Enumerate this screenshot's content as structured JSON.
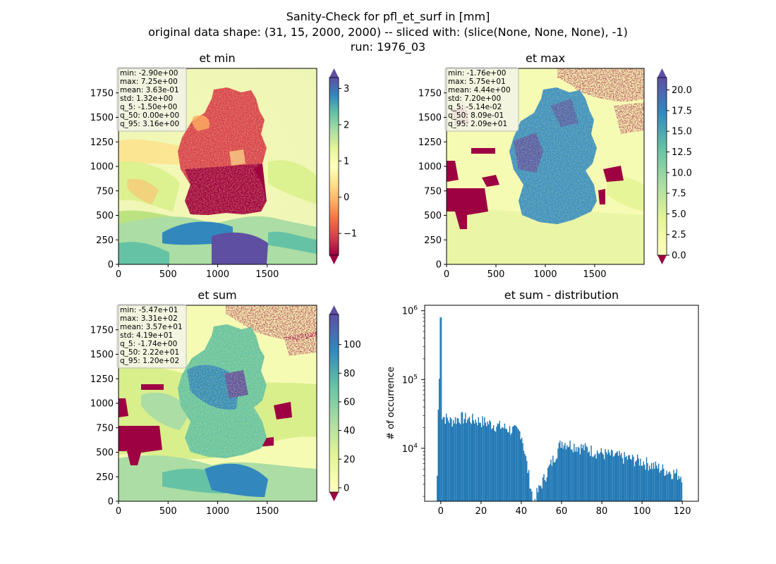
{
  "figure": {
    "title_lines": [
      "Sanity-Check for pfl_et_surf in [mm]",
      "original data shape: (31, 15, 2000, 2000) -- sliced with: (slice(None, None, None), -1)",
      "run: 1976_03"
    ]
  },
  "colors": {
    "hist_bar": "#1f77b4",
    "colormap": "Spectral",
    "under_color": "#9e0142",
    "background_yellow": "#f7fbb0"
  },
  "chart_data": [
    {
      "type": "heatmap",
      "title": "et min",
      "xlim": [
        0,
        2000
      ],
      "ylim": [
        0,
        2000
      ],
      "xticks": [
        "0",
        "500",
        "1000",
        "1500"
      ],
      "yticks": [
        "0",
        "250",
        "500",
        "750",
        "1000",
        "1250",
        "1500",
        "1750"
      ],
      "colorbar": {
        "vmin": -1.6,
        "vmax": 3.3,
        "ticks": [
          "−1",
          "0",
          "1",
          "2",
          "3"
        ],
        "tick_values": [
          -1,
          0,
          1,
          2,
          3
        ],
        "extend": "both"
      },
      "stats": [
        "min: -2.90e+00",
        "max: 7.25e+00",
        "mean: 3.63e-01",
        "std: 1.32e+00",
        "q_5: -1.50e+00",
        "q_50: 0.00e+00",
        "q_95: 3.16e+00"
      ]
    },
    {
      "type": "heatmap",
      "title": "et max",
      "xlim": [
        0,
        2000
      ],
      "ylim": [
        0,
        2000
      ],
      "xticks": [
        "0",
        "500",
        "1000",
        "1500"
      ],
      "yticks": [
        "0",
        "250",
        "500",
        "750",
        "1000",
        "1250",
        "1500",
        "1750"
      ],
      "colorbar": {
        "vmin": 0,
        "vmax": 21.5,
        "ticks": [
          "0.0",
          "2.5",
          "5.0",
          "7.5",
          "10.0",
          "12.5",
          "15.0",
          "17.5",
          "20.0"
        ],
        "tick_values": [
          0,
          2.5,
          5,
          7.5,
          10,
          12.5,
          15,
          17.5,
          20
        ],
        "extend": "both"
      },
      "stats": [
        "min: -1.76e+00",
        "max: 5.75e+01",
        "mean: 4.44e+00",
        "std: 7.20e+00",
        "q_5: -5.14e-02",
        "q_50: 8.09e-01",
        "q_95: 2.09e+01"
      ]
    },
    {
      "type": "heatmap",
      "title": "et sum",
      "xlim": [
        0,
        2000
      ],
      "ylim": [
        0,
        2000
      ],
      "xticks": [
        "0",
        "500",
        "1000",
        "1500"
      ],
      "yticks": [
        "0",
        "250",
        "500",
        "750",
        "1000",
        "1250",
        "1500",
        "1750"
      ],
      "colorbar": {
        "vmin": -3,
        "vmax": 121,
        "ticks": [
          "0",
          "20",
          "40",
          "60",
          "80",
          "100"
        ],
        "tick_values": [
          0,
          20,
          40,
          60,
          80,
          100
        ],
        "extend": "both"
      },
      "stats": [
        "min: -5.47e+01",
        "max: 3.31e+02",
        "mean: 3.57e+01",
        "std: 4.19e+01",
        "q_5: -1.74e+00",
        "q_50: 2.22e+01",
        "q_95: 1.20e+02"
      ]
    },
    {
      "type": "bar",
      "title": "et sum - distribution",
      "ylabel": "# of occurrence",
      "yscale": "log",
      "xlim": [
        -8,
        128
      ],
      "ylim": [
        1700,
        1200000
      ],
      "xticks": [
        "0",
        "20",
        "40",
        "60",
        "80",
        "100",
        "120"
      ],
      "xtick_values": [
        0,
        20,
        40,
        60,
        80,
        100,
        120
      ],
      "yticks": [
        "10^4",
        "10^5",
        "10^6"
      ],
      "ytick_values": [
        10000,
        100000,
        1000000
      ],
      "bins": {
        "start": -2,
        "end": 120,
        "count": 244
      },
      "features": [
        {
          "x": -1.5,
          "y": 19000
        },
        {
          "x": 0,
          "y": 800000
        },
        {
          "x": 0.5,
          "y": 30000
        },
        {
          "x": 5,
          "y": 25000
        },
        {
          "x": 10,
          "y": 28000
        },
        {
          "x": 20,
          "y": 25000
        },
        {
          "x": 40,
          "y": 17000
        },
        {
          "x": 46,
          "y": 1700
        },
        {
          "x": 60,
          "y": 12500
        },
        {
          "x": 80,
          "y": 8500
        },
        {
          "x": 100,
          "y": 6500
        },
        {
          "x": 110,
          "y": 5000
        },
        {
          "x": 120,
          "y": 4000
        }
      ]
    }
  ]
}
